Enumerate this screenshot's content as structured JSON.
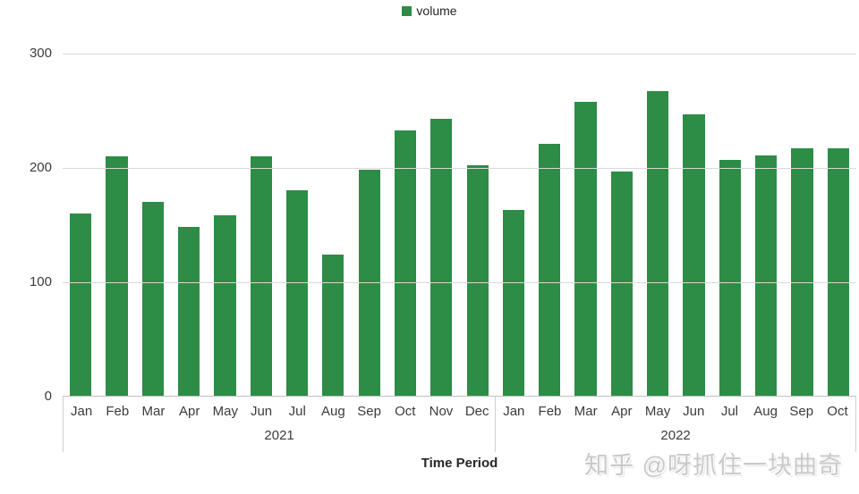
{
  "legend": {
    "label": "volume",
    "swatch_color": "#2d8c46",
    "swatch_icon": "square"
  },
  "watermark": "知乎 @呀抓住一块曲奇",
  "colors": {
    "bar": "#2d8c46",
    "gridline": "#d9d9d9",
    "baseline": "#bfbfbf",
    "tick_separator": "#d0d0d0",
    "text": "#3b3b3b",
    "watermark": "#c9c9c9"
  },
  "chart_data": {
    "type": "bar",
    "title": "",
    "xlabel": "Time Period",
    "ylabel": "",
    "ylim": [
      0,
      300
    ],
    "yticks": [
      0,
      100,
      200,
      300
    ],
    "grid": true,
    "legend_position": "top-center",
    "series_name": "volume",
    "groups": [
      {
        "year": "2021",
        "months": [
          "Jan",
          "Feb",
          "Mar",
          "Apr",
          "May",
          "Jun",
          "Jul",
          "Aug",
          "Sep",
          "Oct",
          "Nov",
          "Dec"
        ],
        "values": [
          160,
          210,
          170,
          148,
          158,
          210,
          180,
          124,
          198,
          233,
          243,
          202
        ]
      },
      {
        "year": "2022",
        "months": [
          "Jan",
          "Feb",
          "Mar",
          "Apr",
          "May",
          "Jun",
          "Jul",
          "Aug",
          "Sep",
          "Oct"
        ],
        "values": [
          163,
          221,
          258,
          197,
          267,
          247,
          207,
          211,
          217,
          217
        ]
      }
    ]
  }
}
